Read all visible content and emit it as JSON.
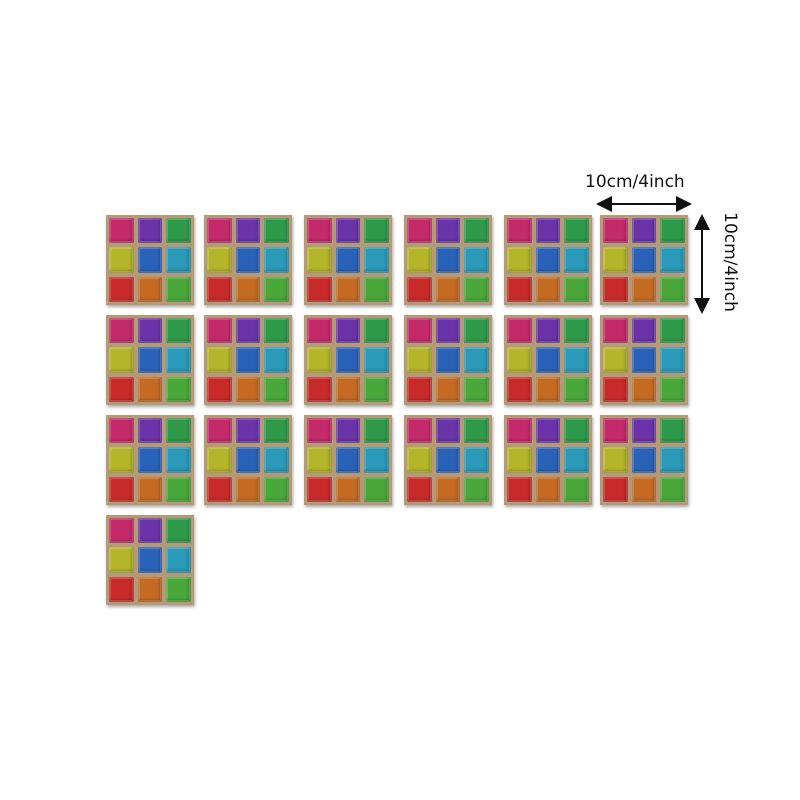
{
  "dimensions": {
    "width_label": "10cm/4inch",
    "height_label": "10cm/4inch"
  },
  "tile_count": 19,
  "tile_colors": [
    "#c42a6a",
    "#6a34a8",
    "#2e9a4a",
    "#b5b52a",
    "#2a62b8",
    "#2a9ab8",
    "#c82a2a",
    "#c46a22",
    "#4aa83a"
  ],
  "grout_color": "#b59a78"
}
